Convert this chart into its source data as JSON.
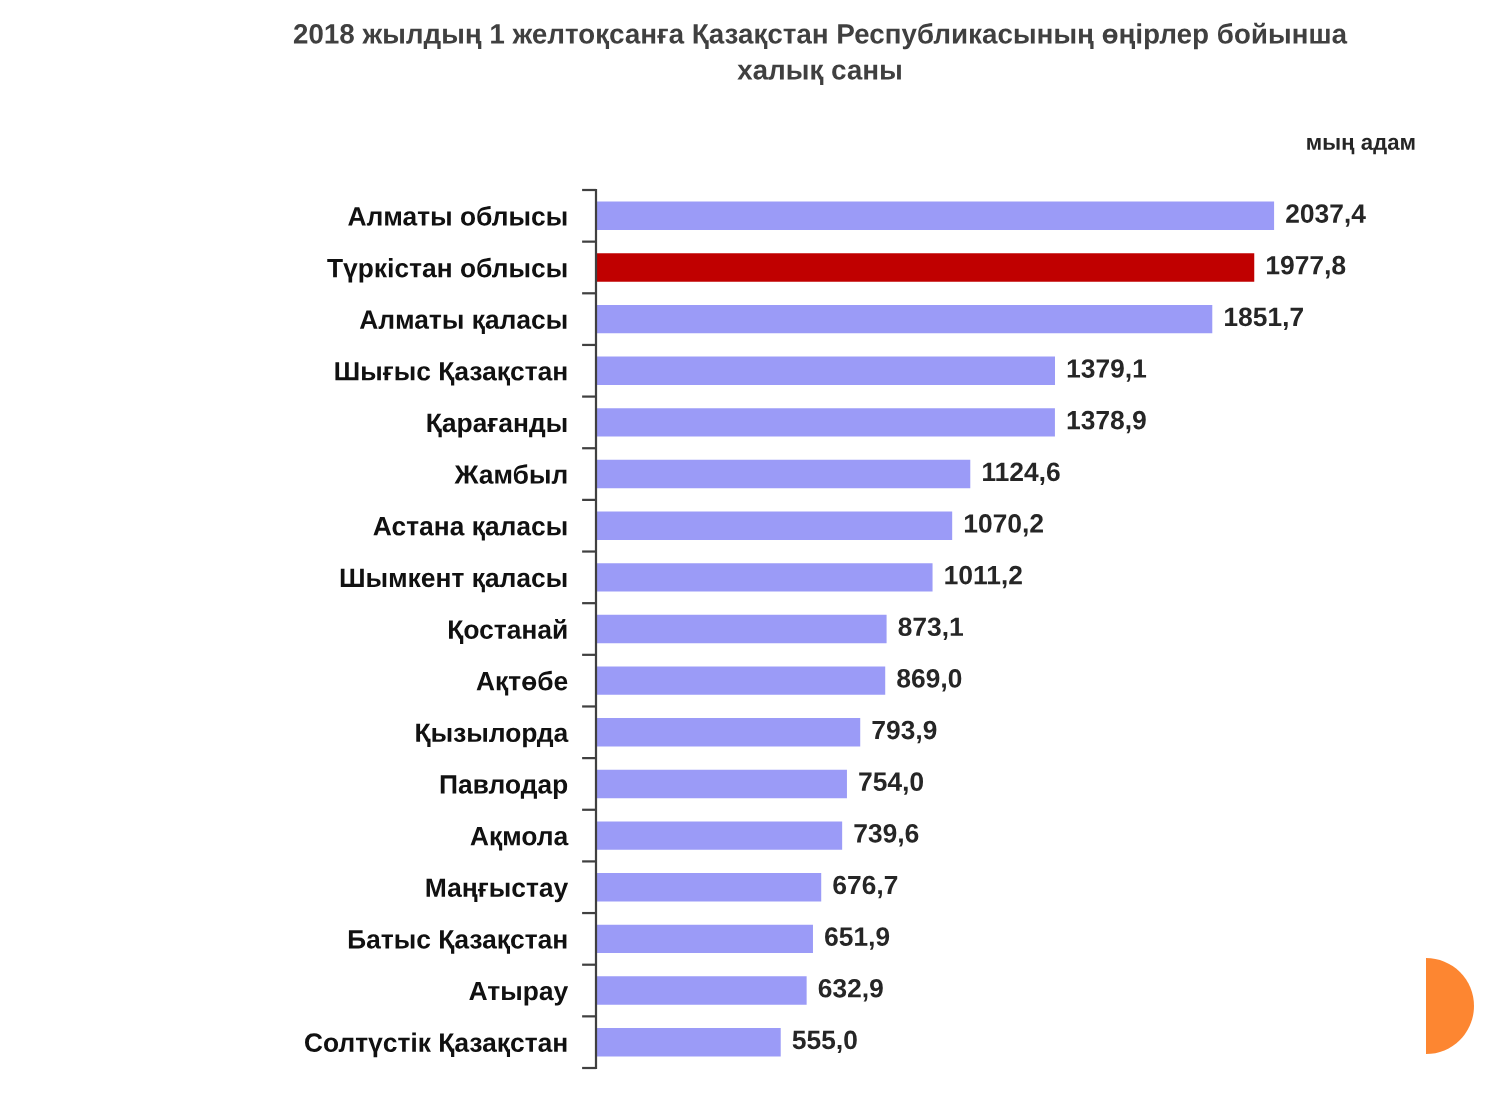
{
  "chart_data": {
    "type": "bar",
    "orientation": "horizontal",
    "title": "2018 жылдың 1 желтоқсанға Қазақстан Республикасының өңірлер бойынша\nхалық саны",
    "annotations": [
      "мың адам"
    ],
    "categories": [
      "Алматы облысы",
      "Түркістан облысы",
      "Алматы қаласы",
      "Шығыс Қазақстан",
      "Қарағанды",
      "Жамбыл",
      "Астана қаласы",
      "Шымкент қаласы",
      "Қостанай",
      "Ақтөбе",
      "Қызылорда",
      "Павлодар",
      "Ақмола",
      "Маңғыстау",
      "Батыс Қазақстан",
      "Атырау",
      "Солтүстік Қазақстан"
    ],
    "values": [
      2037.4,
      1977.8,
      1851.7,
      1379.1,
      1378.9,
      1124.6,
      1070.2,
      1011.2,
      873.1,
      869.0,
      793.9,
      754.0,
      739.6,
      676.7,
      651.9,
      632.9,
      555.0
    ],
    "colors": [
      "#9b9bf7",
      "#c00000",
      "#9b9bf7",
      "#9b9bf7",
      "#9b9bf7",
      "#9b9bf7",
      "#9b9bf7",
      "#9b9bf7",
      "#9b9bf7",
      "#9b9bf7",
      "#9b9bf7",
      "#9b9bf7",
      "#9b9bf7",
      "#9b9bf7",
      "#9b9bf7",
      "#9b9bf7",
      "#9b9bf7"
    ],
    "value_labels": [
      "2037,4",
      "1977,8",
      "1851,7",
      "1379,1",
      "1378,9",
      "1124,6",
      "1070,2",
      "1011,2",
      "873,1",
      "869,0",
      "793,9",
      "754,0",
      "739,6",
      "676,7",
      "651,9",
      "632,9",
      "555,0"
    ],
    "tick_labels": "y"
  }
}
